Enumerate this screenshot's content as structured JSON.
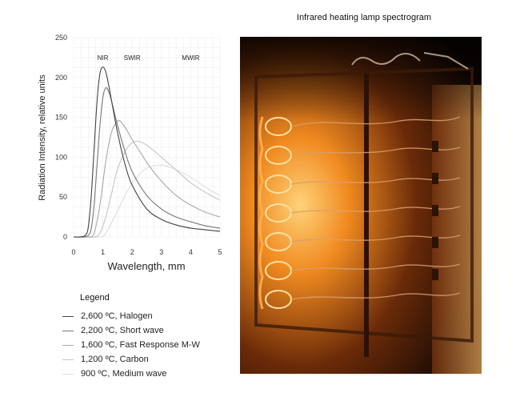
{
  "figure_title": "Infrared heating lamp spectrogram",
  "photo_alt": "Infrared heating lamp glowing orange inside a housing",
  "chart_data": {
    "type": "line",
    "xlabel": "Wavelength, mm",
    "ylabel": "Radiation Intensity, relative units",
    "xlim": [
      0,
      5
    ],
    "ylim": [
      0,
      250
    ],
    "x_ticks": [
      "0",
      "1",
      "2",
      "3",
      "4",
      "5"
    ],
    "y_ticks": [
      "0",
      "50",
      "100",
      "150",
      "200",
      "250"
    ],
    "grid": true,
    "bands": [
      {
        "label": "NIR",
        "x": 1.0
      },
      {
        "label": "SWIR",
        "x": 2.0
      },
      {
        "label": "MWIR",
        "x": 4.0
      }
    ],
    "legend_title": "Legend",
    "series": [
      {
        "name": "2,600 ºC, Halogen",
        "color": "#444444",
        "x": [
          0,
          0.2,
          0.4,
          0.5,
          0.6,
          0.7,
          0.8,
          0.9,
          1.0,
          1.1,
          1.2,
          1.3,
          1.5,
          1.75,
          2.0,
          2.5,
          3.0,
          3.5,
          4.0,
          4.5,
          5.0
        ],
        "y": [
          0,
          0,
          2,
          12,
          50,
          110,
          170,
          205,
          213,
          207,
          190,
          170,
          131,
          92,
          65,
          35,
          22,
          15,
          11,
          9,
          7
        ]
      },
      {
        "name": "2,200 ºC, Short wave",
        "color": "#777777",
        "x": [
          0,
          0.3,
          0.5,
          0.6,
          0.7,
          0.8,
          0.9,
          1.0,
          1.1,
          1.2,
          1.3,
          1.5,
          1.75,
          2.0,
          2.5,
          3.0,
          3.5,
          4.0,
          4.5,
          5.0
        ],
        "y": [
          0,
          0,
          2,
          10,
          40,
          90,
          140,
          175,
          187,
          182,
          170,
          140,
          108,
          82,
          52,
          35,
          25,
          19,
          14,
          11
        ]
      },
      {
        "name": "1,600 ºC, Fast Response M-W",
        "color": "#a8a8a8",
        "x": [
          0,
          0.5,
          0.7,
          0.9,
          1.1,
          1.3,
          1.5,
          1.6,
          1.8,
          2.0,
          2.3,
          2.6,
          3.0,
          3.5,
          4.0,
          4.5,
          5.0
        ],
        "y": [
          0,
          0,
          5,
          40,
          95,
          132,
          145,
          145,
          135,
          122,
          105,
          88,
          70,
          52,
          40,
          31,
          25
        ]
      },
      {
        "name": "1,200 ºC, Carbon",
        "color": "#c6c6c6",
        "x": [
          0,
          0.7,
          0.9,
          1.1,
          1.3,
          1.5,
          1.8,
          2.0,
          2.2,
          2.5,
          3.0,
          3.5,
          4.0,
          4.5,
          5.0
        ],
        "y": [
          0,
          0,
          5,
          25,
          55,
          85,
          110,
          118,
          120,
          115,
          100,
          84,
          68,
          56,
          46
        ]
      },
      {
        "name": "900 ºC, Medium wave",
        "color": "#dedede",
        "x": [
          0,
          0.9,
          1.1,
          1.4,
          1.8,
          2.2,
          2.6,
          3.0,
          3.4,
          3.8,
          4.2,
          4.6,
          5.0
        ],
        "y": [
          0,
          0,
          5,
          25,
          55,
          77,
          88,
          90,
          86,
          79,
          70,
          60,
          52
        ]
      }
    ]
  }
}
